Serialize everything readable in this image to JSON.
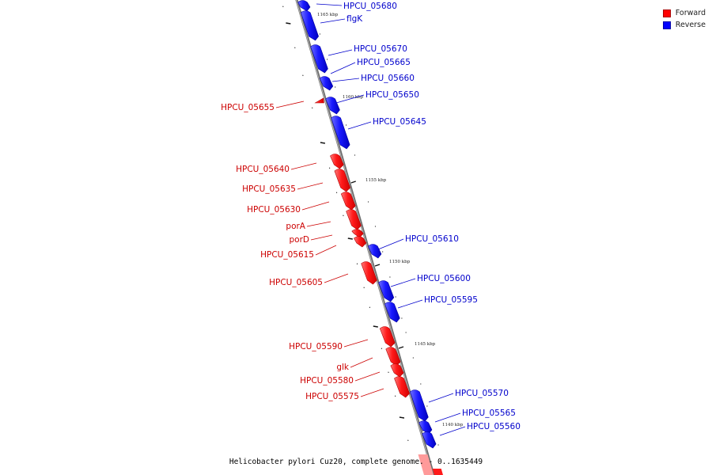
{
  "legend": {
    "items": [
      {
        "label": "Forward",
        "color": "#ff0000"
      },
      {
        "label": "Reverse",
        "color": "#0000ff"
      }
    ]
  },
  "caption": "Helicobacter pylori Cuz20, complete genome. - 0..1635449",
  "colors": {
    "forward": "#ff0000",
    "forward_light": "#ff6b6b",
    "reverse": "#1010ff",
    "reverse_light": "#7070ff",
    "forward_label": "#cc0000",
    "reverse_label": "#0000cc",
    "backbone": "#888888"
  },
  "ticks": [
    {
      "label": "1165 kbp"
    },
    {
      "label": "1160 kbp"
    },
    {
      "label": "1155 kbp"
    },
    {
      "label": "1150 kbp"
    },
    {
      "label": "1145 kbp"
    },
    {
      "label": "1140 kbp"
    }
  ],
  "genes": [
    {
      "name": "HPCU_05680",
      "strand": "reverse"
    },
    {
      "name": "flgK",
      "strand": "reverse"
    },
    {
      "name": "HPCU_05670",
      "strand": "reverse"
    },
    {
      "name": "HPCU_05665",
      "strand": "reverse"
    },
    {
      "name": "HPCU_05660",
      "strand": "reverse"
    },
    {
      "name": "HPCU_05655",
      "strand": "forward"
    },
    {
      "name": "HPCU_05650",
      "strand": "reverse"
    },
    {
      "name": "HPCU_05645",
      "strand": "reverse"
    },
    {
      "name": "HPCU_05640",
      "strand": "forward"
    },
    {
      "name": "HPCU_05635",
      "strand": "forward"
    },
    {
      "name": "HPCU_05630",
      "strand": "forward"
    },
    {
      "name": "porA",
      "strand": "forward"
    },
    {
      "name": "porD",
      "strand": "forward"
    },
    {
      "name": "HPCU_05615",
      "strand": "forward"
    },
    {
      "name": "HPCU_05610",
      "strand": "reverse"
    },
    {
      "name": "HPCU_05605",
      "strand": "forward"
    },
    {
      "name": "HPCU_05600",
      "strand": "reverse"
    },
    {
      "name": "HPCU_05595",
      "strand": "reverse"
    },
    {
      "name": "HPCU_05590",
      "strand": "forward"
    },
    {
      "name": "glk",
      "strand": "forward"
    },
    {
      "name": "HPCU_05580",
      "strand": "forward"
    },
    {
      "name": "HPCU_05575",
      "strand": "forward"
    },
    {
      "name": "HPCU_05570",
      "strand": "reverse"
    },
    {
      "name": "HPCU_05565",
      "strand": "reverse"
    },
    {
      "name": "HPCU_05560",
      "strand": "reverse"
    }
  ]
}
